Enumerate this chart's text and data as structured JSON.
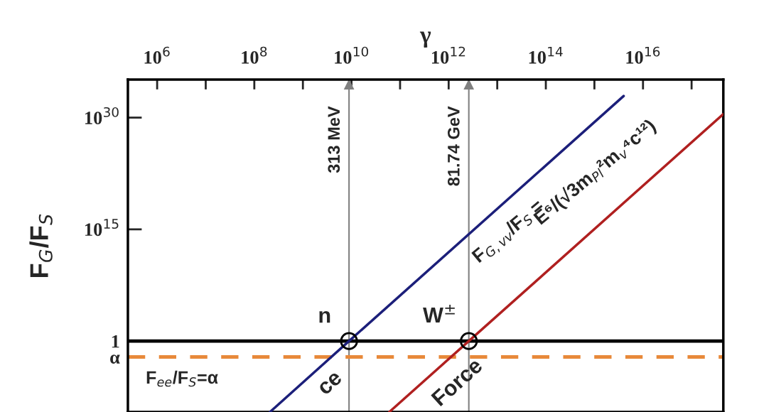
{
  "chart_data": {
    "type": "line",
    "xlabel": "γ",
    "ylabel": "F$_{G}$/F$_{S}$",
    "log": "xy",
    "grid": false,
    "legend": false,
    "xlim": [
      250000.0,
      4.5e+17
    ],
    "ylim": [
      3e-10,
      1.3e+35
    ],
    "xticks": [
      {
        "value": 1000000.0,
        "label": "10$^{6}$"
      },
      {
        "value": 10000000.0,
        "label": null
      },
      {
        "value": 100000000.0,
        "label": "10$^{8}$"
      },
      {
        "value": 1000000000.0,
        "label": null
      },
      {
        "value": 10000000000.0,
        "label": "10$^{10}$"
      },
      {
        "value": 100000000000.0,
        "label": null
      },
      {
        "value": 1000000000000.0,
        "label": "10$^{12}$"
      },
      {
        "value": 10000000000000.0,
        "label": null
      },
      {
        "value": 100000000000000.0,
        "label": "10$^{14}$"
      },
      {
        "value": 1000000000000000.0,
        "label": null
      },
      {
        "value": 1e+16,
        "label": "10$^{16}$"
      },
      {
        "value": 1e+17,
        "label": null
      }
    ],
    "yticks": [
      {
        "value": 1e+30,
        "label": "10$^{30}$"
      },
      {
        "value": 1000000000000000.0,
        "label": "10$^{15}$"
      },
      1,
      {
        "value": 0.0073,
        "label": "α"
      }
    ],
    "series": [
      {
        "color": "#1c1f7a",
        "x": [
          210000000.0,
          8900000000.0,
          4000000000000000.0
        ],
        "values": [
          3e-10,
          1,
          8e+32
        ]
      },
      {
        "color": "#b02020",
        "x": [
          60000000000.0,
          2600000000000.0,
          4.5e+17
        ],
        "values": [
          3e-10,
          1,
          3e+30
        ]
      },
      {
        "type": "scatter",
        "color": "#000000",
        "marker": "circle",
        "x": [
          8900000000.0,
          2600000000000.0
        ],
        "values": [
          1,
          1
        ]
      }
    ],
    "ref_lines": [
      {
        "axis": "y",
        "value": 1,
        "color": "#000000",
        "line_style": "solid"
      },
      {
        "axis": "y",
        "value": 0.0073,
        "color": "#e8893a",
        "line_style": "dashed",
        "label": "F$_{ee}$/F$_{S}$=α"
      },
      {
        "axis": "x",
        "value": 8900000000.0,
        "color": "#808080",
        "line_style": "solid",
        "label": "313 MeV"
      },
      {
        "axis": "x",
        "value": 2600000000000.0,
        "color": "#808080",
        "line_style": "solid",
        "label": "81.74 GeV"
      }
    ],
    "annotations": [
      {
        "text": "n",
        "x": 8900000000.0,
        "y": 1
      },
      {
        "text": "W$^{±}$",
        "x": 2600000000000.0,
        "y": 1
      },
      "F$_{G,vv}$/F$_{S}$ =",
      "E⁶/(√3m$_{Pl}$²m$_{v}$⁴c¹²)",
      {
        "text": "ce",
        "x": 1200000000.0,
        "y": 1e-05
      },
      {
        "text": "Force",
        "x": 250000000000.0,
        "y": 1e-06
      }
    ]
  }
}
